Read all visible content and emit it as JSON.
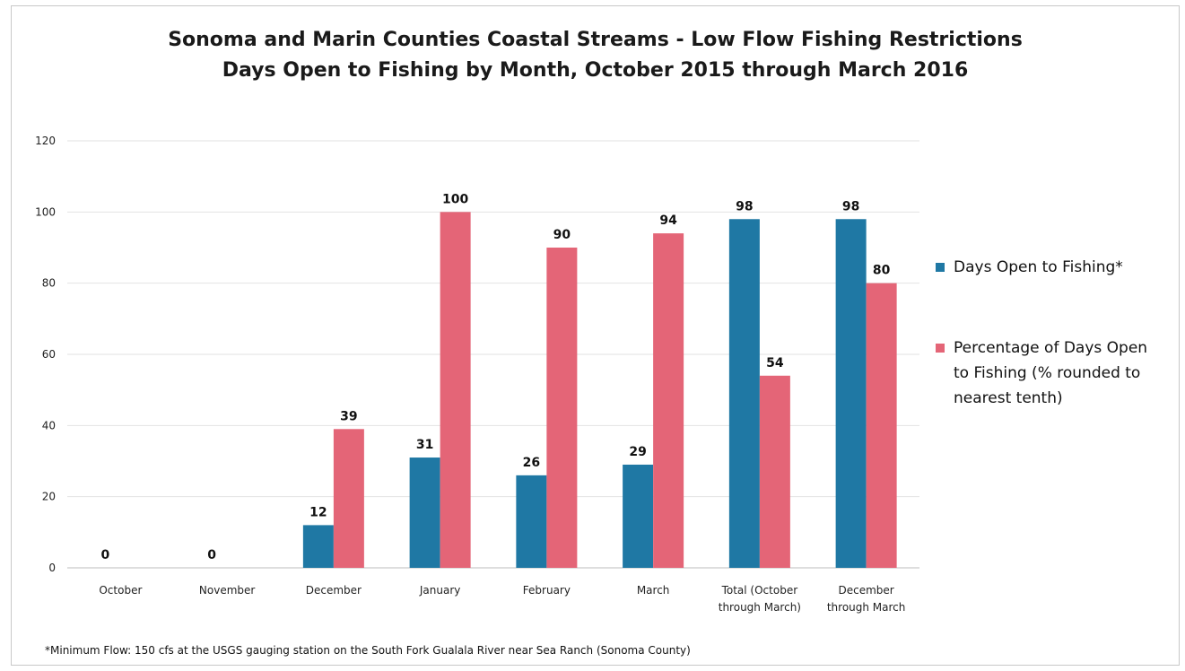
{
  "chart_data": {
    "type": "bar",
    "title": "Sonoma and Marin Counties Coastal Streams - Low Flow Fishing Restrictions",
    "subtitle": "Days Open to Fishing by Month, October 2015 through March 2016",
    "categories": [
      "October",
      "November",
      "December",
      "January",
      "February",
      "March",
      "Total (October through March)",
      "December through March"
    ],
    "category_lines": [
      [
        "October"
      ],
      [
        "November"
      ],
      [
        "December"
      ],
      [
        "January"
      ],
      [
        "February"
      ],
      [
        "March"
      ],
      [
        "Total (October",
        "through March)"
      ],
      [
        "December",
        "through March"
      ]
    ],
    "series": [
      {
        "name": "Days Open to Fishing*",
        "color": "#1f78a4",
        "values": [
          0,
          0,
          12,
          31,
          26,
          29,
          98,
          98
        ]
      },
      {
        "name": "Percentage of Days Open to Fishing (% rounded to nearest tenth)",
        "color": "#e46577",
        "values": [
          null,
          null,
          39,
          100,
          90,
          94,
          54,
          80
        ]
      }
    ],
    "ylim": [
      0,
      120
    ],
    "yticks": [
      0,
      20,
      40,
      60,
      80,
      100,
      120
    ],
    "grid": true,
    "legend_position": "right",
    "xlabel": "",
    "ylabel": ""
  },
  "legend": {
    "items": [
      {
        "lines": [
          "Days Open to Fishing*"
        ],
        "color": "#1f78a4"
      },
      {
        "lines": [
          "Percentage of Days Open",
          "to Fishing (% rounded to",
          "nearest tenth)"
        ],
        "color": "#e46577"
      }
    ]
  },
  "footnote": "*Minimum Flow: 150 cfs at the USGS gauging station on the South Fork Gualala River near Sea Ranch (Sonoma County)"
}
